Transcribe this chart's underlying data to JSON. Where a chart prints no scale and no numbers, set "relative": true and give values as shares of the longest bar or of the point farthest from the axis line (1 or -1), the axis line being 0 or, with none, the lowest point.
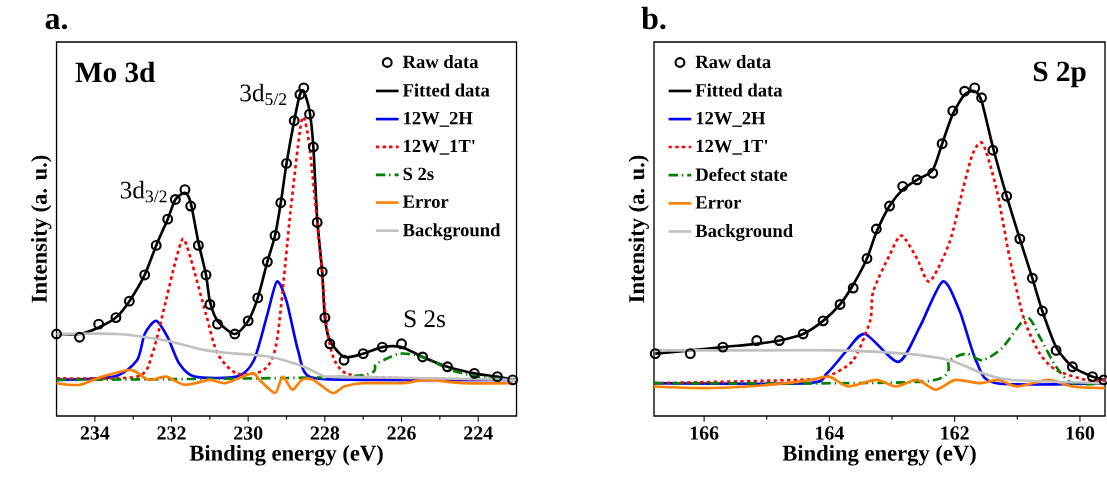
{
  "chart_data": [
    {
      "type": "line",
      "title": "a.",
      "xlabel": "Binding energy (eV)",
      "ylabel": "Intensity (a. u.)",
      "relative": true,
      "xlim": [
        235,
        223
      ],
      "xticks": [
        234,
        232,
        230,
        228,
        226,
        224
      ],
      "legend": "top right",
      "annotations": [
        "Mo 3d",
        "3d$_{3/2}$",
        "3d$_{5/2}$",
        "S 2s"
      ],
      "series": [
        {
          "name": "Raw data",
          "type": "scatter",
          "marker": "circle",
          "color": "#000000",
          "x": [
            235.0,
            234.4,
            233.9,
            233.45,
            233.1,
            232.7,
            232.4,
            232.1,
            231.9,
            231.65,
            231.5,
            231.3,
            231.1,
            231.0,
            230.8,
            230.35,
            230.0,
            229.75,
            229.5,
            229.3,
            229.15,
            229.0,
            228.8,
            228.65,
            228.55,
            228.4,
            228.3,
            228.2,
            228.07,
            228.0,
            227.87,
            227.5,
            227.0,
            226.5,
            226.0,
            225.45,
            224.8,
            224.1,
            223.5,
            223.1
          ],
          "values": [
            0.25,
            0.24,
            0.28,
            0.3,
            0.35,
            0.43,
            0.52,
            0.6,
            0.66,
            0.69,
            0.64,
            0.52,
            0.43,
            0.34,
            0.28,
            0.25,
            0.29,
            0.36,
            0.47,
            0.55,
            0.65,
            0.77,
            0.9,
            0.98,
            1.0,
            0.92,
            0.82,
            0.59,
            0.44,
            0.3,
            0.22,
            0.17,
            0.19,
            0.21,
            0.22,
            0.18,
            0.15,
            0.13,
            0.12,
            0.11
          ]
        },
        {
          "name": "Fitted data",
          "line_style": "solid",
          "color": "#000000",
          "x": [
            235.0,
            234.4,
            233.9,
            233.45,
            233.1,
            232.7,
            232.4,
            232.1,
            231.9,
            231.65,
            231.5,
            231.3,
            231.1,
            231.0,
            230.8,
            230.35,
            230.0,
            229.75,
            229.5,
            229.3,
            229.15,
            229.0,
            228.8,
            228.65,
            228.55,
            228.4,
            228.3,
            228.2,
            228.07,
            228.0,
            227.87,
            227.5,
            227.0,
            226.5,
            226.0,
            225.45,
            224.8,
            224.1,
            223.5,
            223.1
          ],
          "values": [
            0.25,
            0.25,
            0.27,
            0.3,
            0.35,
            0.43,
            0.52,
            0.6,
            0.66,
            0.68,
            0.65,
            0.53,
            0.43,
            0.35,
            0.29,
            0.25,
            0.29,
            0.36,
            0.47,
            0.55,
            0.65,
            0.77,
            0.9,
            0.98,
            0.99,
            0.93,
            0.82,
            0.6,
            0.44,
            0.3,
            0.23,
            0.18,
            0.19,
            0.21,
            0.21,
            0.18,
            0.15,
            0.13,
            0.12,
            0.11
          ]
        },
        {
          "name": "12W_2H",
          "line_style": "solid",
          "color": "#0000ff",
          "x": [
            235.0,
            233.5,
            232.9,
            232.7,
            232.4,
            232.1,
            231.8,
            231.4,
            230.3,
            229.85,
            229.5,
            229.25,
            229.0,
            228.7,
            228.4,
            227.0,
            223.0
          ],
          "values": [
            0.11,
            0.12,
            0.17,
            0.25,
            0.29,
            0.24,
            0.16,
            0.12,
            0.12,
            0.17,
            0.31,
            0.41,
            0.35,
            0.2,
            0.12,
            0.11,
            0.11
          ]
        },
        {
          "name": "12W_1T'",
          "line_style": "dotted",
          "color": "#ff0000",
          "x": [
            235.0,
            232.9,
            232.5,
            232.15,
            231.9,
            231.7,
            231.5,
            231.1,
            230.8,
            230.3,
            229.6,
            229.25,
            228.9,
            228.65,
            228.55,
            228.4,
            228.1,
            227.95,
            227.7,
            227.0,
            223.0
          ],
          "values": [
            0.115,
            0.12,
            0.19,
            0.35,
            0.47,
            0.54,
            0.48,
            0.31,
            0.19,
            0.13,
            0.14,
            0.23,
            0.62,
            0.87,
            0.91,
            0.82,
            0.47,
            0.27,
            0.16,
            0.12,
            0.11
          ]
        },
        {
          "name": "S 2s",
          "line_style": "dashed",
          "color": "#008000",
          "x": [
            235.0,
            227.4,
            226.65,
            226.05,
            225.45,
            224.7,
            224.0,
            223.0
          ],
          "values": [
            0.11,
            0.12,
            0.16,
            0.19,
            0.18,
            0.14,
            0.12,
            0.11
          ]
        },
        {
          "name": "Error",
          "line_style": "solid",
          "color": "#ff8000",
          "x": [
            235.0,
            234.4,
            233.8,
            233.05,
            232.6,
            232.15,
            231.65,
            231.0,
            230.6,
            229.9,
            229.7,
            229.3,
            229.1,
            228.85,
            228.6,
            228.3,
            227.8,
            227.5,
            227.0,
            226.0,
            225.35,
            224.4,
            223.1
          ],
          "values": [
            0.1,
            0.095,
            0.12,
            0.14,
            0.11,
            0.12,
            0.095,
            0.11,
            0.1,
            0.13,
            0.11,
            0.07,
            0.12,
            0.08,
            0.11,
            0.11,
            0.07,
            0.09,
            0.1,
            0.1,
            0.11,
            0.1,
            0.1
          ]
        },
        {
          "name": "Background",
          "line_style": "solid",
          "color": "#c0c0c0",
          "x": [
            235.0,
            233.4,
            232.15,
            231.1,
            230.3,
            229.4,
            228.55,
            228.0,
            227.7,
            223.0
          ],
          "values": [
            0.25,
            0.25,
            0.23,
            0.2,
            0.19,
            0.18,
            0.15,
            0.12,
            0.12,
            0.11
          ]
        }
      ]
    },
    {
      "type": "line",
      "title": "b.",
      "xlabel": "Binding energy (eV)",
      "ylabel": "Intensity (a. u.)",
      "relative": true,
      "xlim": [
        166.8,
        159.6
      ],
      "xticks": [
        166,
        164,
        162,
        160
      ],
      "legend": "top left",
      "annotations": [
        "S 2p"
      ],
      "series": [
        {
          "name": "Raw data",
          "type": "scatter",
          "marker": "circle",
          "color": "#000000",
          "x": [
            166.78,
            166.22,
            165.7,
            165.16,
            164.8,
            164.42,
            164.1,
            163.83,
            163.62,
            163.4,
            163.25,
            163.04,
            162.83,
            162.6,
            162.35,
            162.2,
            162.03,
            161.84,
            161.68,
            161.57,
            161.39,
            161.17,
            160.96,
            160.76,
            160.6,
            160.38,
            160.12,
            159.8,
            159.62
          ],
          "values": [
            0.19,
            0.19,
            0.21,
            0.23,
            0.23,
            0.25,
            0.29,
            0.34,
            0.39,
            0.48,
            0.57,
            0.64,
            0.7,
            0.72,
            0.74,
            0.83,
            0.93,
            0.99,
            1.0,
            0.97,
            0.81,
            0.67,
            0.54,
            0.42,
            0.32,
            0.2,
            0.15,
            0.12,
            0.11
          ]
        },
        {
          "name": "Fitted data",
          "line_style": "solid",
          "color": "#000000",
          "x": [
            166.78,
            166.22,
            165.7,
            165.16,
            164.8,
            164.42,
            164.1,
            163.83,
            163.62,
            163.4,
            163.25,
            163.04,
            162.83,
            162.6,
            162.35,
            162.2,
            162.03,
            161.84,
            161.68,
            161.57,
            161.39,
            161.17,
            160.96,
            160.76,
            160.6,
            160.38,
            160.12,
            159.8,
            159.62
          ],
          "values": [
            0.19,
            0.2,
            0.21,
            0.22,
            0.23,
            0.25,
            0.29,
            0.34,
            0.4,
            0.48,
            0.56,
            0.64,
            0.69,
            0.72,
            0.75,
            0.83,
            0.92,
            0.98,
            0.99,
            0.96,
            0.82,
            0.67,
            0.54,
            0.42,
            0.32,
            0.21,
            0.15,
            0.12,
            0.11
          ]
        },
        {
          "name": "12W_2H",
          "line_style": "solid",
          "color": "#0000ff",
          "x": [
            166.8,
            164.36,
            164.04,
            163.72,
            163.43,
            162.9,
            162.56,
            162.19,
            161.92,
            161.65,
            161.33,
            159.6
          ],
          "values": [
            0.1,
            0.1,
            0.13,
            0.2,
            0.25,
            0.165,
            0.27,
            0.41,
            0.32,
            0.165,
            0.1,
            0.1
          ]
        },
        {
          "name": "12W_1T'",
          "line_style": "dotted",
          "color": "#ff0000",
          "x": [
            166.8,
            164.5,
            164.04,
            163.62,
            163.35,
            163.3,
            163.04,
            162.85,
            162.6,
            162.4,
            162.08,
            161.87,
            161.71,
            161.55,
            161.33,
            161.12,
            160.9,
            160.64,
            160.38,
            159.9,
            159.6
          ],
          "values": [
            0.1,
            0.11,
            0.12,
            0.17,
            0.29,
            0.38,
            0.49,
            0.55,
            0.48,
            0.41,
            0.53,
            0.69,
            0.8,
            0.83,
            0.69,
            0.48,
            0.3,
            0.19,
            0.14,
            0.11,
            0.11
          ]
        },
        {
          "name": "Defect state",
          "line_style": "dashed",
          "color": "#008000",
          "x": [
            166.8,
            162.5,
            162.08,
            161.81,
            161.55,
            161.23,
            160.85,
            160.64,
            160.38,
            160.12,
            159.6
          ],
          "values": [
            0.1,
            0.105,
            0.17,
            0.19,
            0.17,
            0.21,
            0.3,
            0.24,
            0.15,
            0.1,
            0.1
          ]
        },
        {
          "name": "Error",
          "line_style": "solid",
          "color": "#ff8000",
          "x": [
            166.8,
            166.0,
            165.3,
            164.7,
            164.3,
            164.0,
            163.7,
            163.25,
            162.94,
            162.6,
            162.3,
            161.99,
            161.6,
            161.3,
            161.0,
            160.5,
            160.12,
            159.6
          ],
          "values": [
            0.09,
            0.085,
            0.09,
            0.1,
            0.11,
            0.12,
            0.09,
            0.11,
            0.09,
            0.11,
            0.08,
            0.11,
            0.1,
            0.11,
            0.09,
            0.11,
            0.09,
            0.085
          ]
        },
        {
          "name": "Background",
          "line_style": "solid",
          "color": "#c0c0c0",
          "x": [
            166.8,
            165.0,
            163.9,
            162.8,
            162.08,
            161.55,
            161.1,
            159.6
          ],
          "values": [
            0.2,
            0.2,
            0.2,
            0.19,
            0.17,
            0.13,
            0.11,
            0.1
          ]
        }
      ]
    }
  ]
}
